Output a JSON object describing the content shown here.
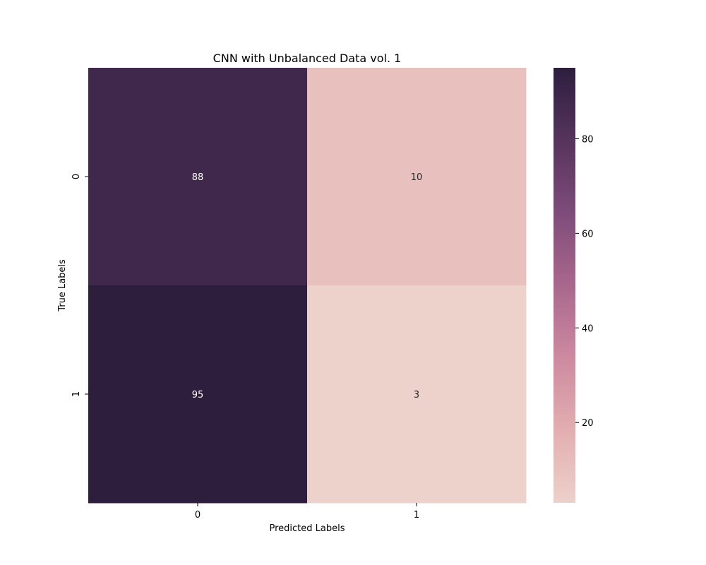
{
  "chart_data": {
    "type": "heatmap",
    "title": "CNN with Unbalanced Data vol. 1",
    "xlabel": "Predicted Labels",
    "ylabel": "True Labels",
    "x_categories": [
      "0",
      "1"
    ],
    "y_categories": [
      "0",
      "1"
    ],
    "values": [
      [
        88,
        10
      ],
      [
        95,
        3
      ]
    ],
    "colorbar": {
      "range": [
        3,
        95
      ],
      "ticks": [
        20,
        40,
        60,
        80
      ],
      "colormap": [
        "#edd1cb",
        "#e2aeb0",
        "#cd8aa0",
        "#a9678d",
        "#7e4c7a",
        "#56345c",
        "#2d1e3e"
      ]
    },
    "text_colors": {
      "light": "#ffffff",
      "dark": "#262626"
    }
  }
}
